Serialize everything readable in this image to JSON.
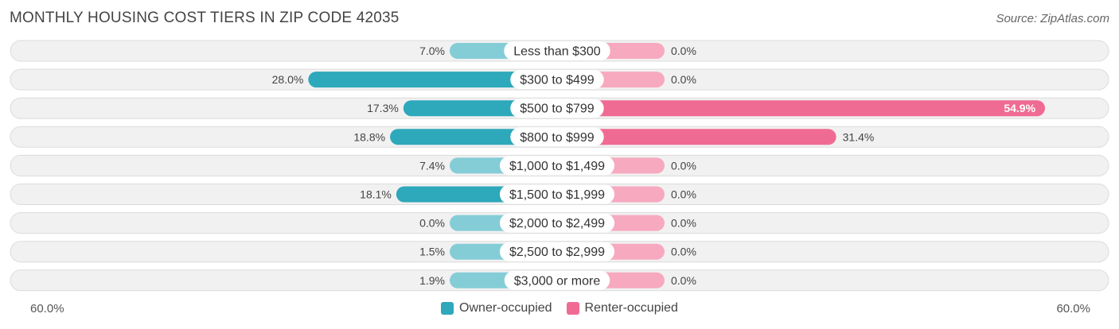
{
  "title": "MONTHLY HOUSING COST TIERS IN ZIP CODE 42035",
  "source": "Source: ZipAtlas.com",
  "colors": {
    "owner": "#2ea8bb",
    "owner_light": "#84cdd7",
    "renter": "#f06b93",
    "renter_light": "#f7a9c0",
    "row_bg": "#f1f1f1",
    "row_border": "#dcdcdc"
  },
  "chart_data": {
    "type": "bar",
    "orientation": "diverging-horizontal",
    "categories": [
      "Less than $300",
      "$300 to $499",
      "$500 to $799",
      "$800 to $999",
      "$1,000 to $1,499",
      "$1,500 to $1,999",
      "$2,000 to $2,499",
      "$2,500 to $2,999",
      "$3,000 or more"
    ],
    "series": [
      {
        "name": "Owner-occupied",
        "values": [
          7.0,
          28.0,
          17.3,
          18.8,
          7.4,
          18.1,
          0.0,
          1.5,
          1.9
        ],
        "labels": [
          "7.0%",
          "28.0%",
          "17.3%",
          "18.8%",
          "7.4%",
          "18.1%",
          "0.0%",
          "1.5%",
          "1.9%"
        ]
      },
      {
        "name": "Renter-occupied",
        "values": [
          0.0,
          0.0,
          54.9,
          31.4,
          0.0,
          0.0,
          0.0,
          0.0,
          0.0
        ],
        "labels": [
          "0.0%",
          "0.0%",
          "54.9%",
          "31.4%",
          "0.0%",
          "0.0%",
          "0.0%",
          "0.0%",
          "0.0%"
        ]
      }
    ],
    "axis_min_label": "60.0%",
    "axis_max_label": "60.0%",
    "xlim": [
      -60,
      60
    ],
    "legend_position": "bottom-center"
  }
}
